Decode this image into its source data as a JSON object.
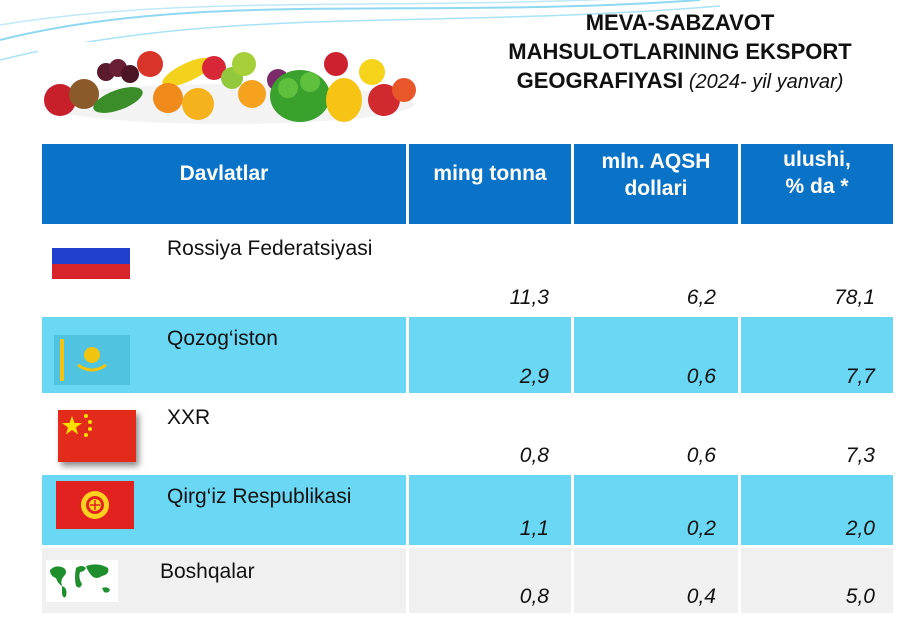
{
  "title": {
    "line1": "MEVA-SABZAVOT",
    "line2": "MAHSULOTLARINING EKSPORT",
    "line3_bold": "GEOGRAFIYASI",
    "line3_italic": " (2024- yil yanvar)"
  },
  "table": {
    "headers": {
      "country": "Davlatlar",
      "tonnes": "ming tonna",
      "usd_line1": "mln. AQSH",
      "usd_line2": "dollari",
      "share_line1": "ulushi,",
      "share_line2": "% da *"
    },
    "rows": [
      {
        "country": "Rossiya Federatsiyasi",
        "tonnes": "11,3",
        "usd": "6,2",
        "share": "78,1",
        "flag": "russia-flag-icon"
      },
      {
        "country": "Qozog‘iston",
        "tonnes": "2,9",
        "usd": "0,6",
        "share": "7,7",
        "flag": "kazakhstan-flag-icon"
      },
      {
        "country": "XXR",
        "tonnes": "0,8",
        "usd": "0,6",
        "share": "7,3",
        "flag": "china-flag-icon"
      },
      {
        "country": "Qirg‘iz Respublikasi",
        "tonnes": "1,1",
        "usd": "0,2",
        "share": "2,0",
        "flag": "kyrgyzstan-flag-icon"
      },
      {
        "country": "Boshqalar",
        "tonnes": "0,8",
        "usd": "0,4",
        "share": "5,0",
        "flag": "world-map-icon"
      }
    ]
  },
  "colors": {
    "header_bg": "#0b73c7",
    "highlight_row": "#6ad7f4",
    "swoosh": "#7fd3f0"
  }
}
